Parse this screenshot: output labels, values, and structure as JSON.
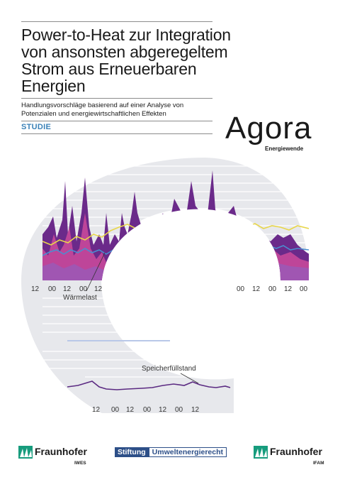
{
  "cover": {
    "title": "Power-to-Heat zur Integration von ansonsten abgeregeltem Strom aus Erneuerbaren Energien",
    "subtitle": "Handlungsvorschläge basierend auf einer Analyse von Potenzialen und energiewirtschaftlichen Effekten",
    "label": "STUDIE"
  },
  "logo": {
    "word": "Agora",
    "sub": "Energiewende"
  },
  "artwork": {
    "upper_ticks": [
      "12",
      "00",
      "12",
      "00",
      "12"
    ],
    "right_ticks": [
      "00",
      "12",
      "00",
      "12",
      "00"
    ],
    "lower_ticks": [
      "12",
      "00",
      "12",
      "00",
      "12",
      "00",
      "12"
    ],
    "annotation_load": "Wärmelast",
    "annotation_storage": "Speicherfüllstand",
    "colors": {
      "purple_dark": "#6b2a8a",
      "pink": "#c8489a",
      "blue_line": "#4a8fd0",
      "yellow_line": "#e8d64a",
      "ring_bg": "#e7e8ec"
    }
  },
  "footer": {
    "fraunhofer_left": {
      "word": "Fraunhofer",
      "institute": "IWES"
    },
    "stiftung": {
      "a": "Stiftung",
      "b": "Umweltenergierecht"
    },
    "fraunhofer_right": {
      "word": "Fraunhofer",
      "institute": "IFAM"
    }
  }
}
